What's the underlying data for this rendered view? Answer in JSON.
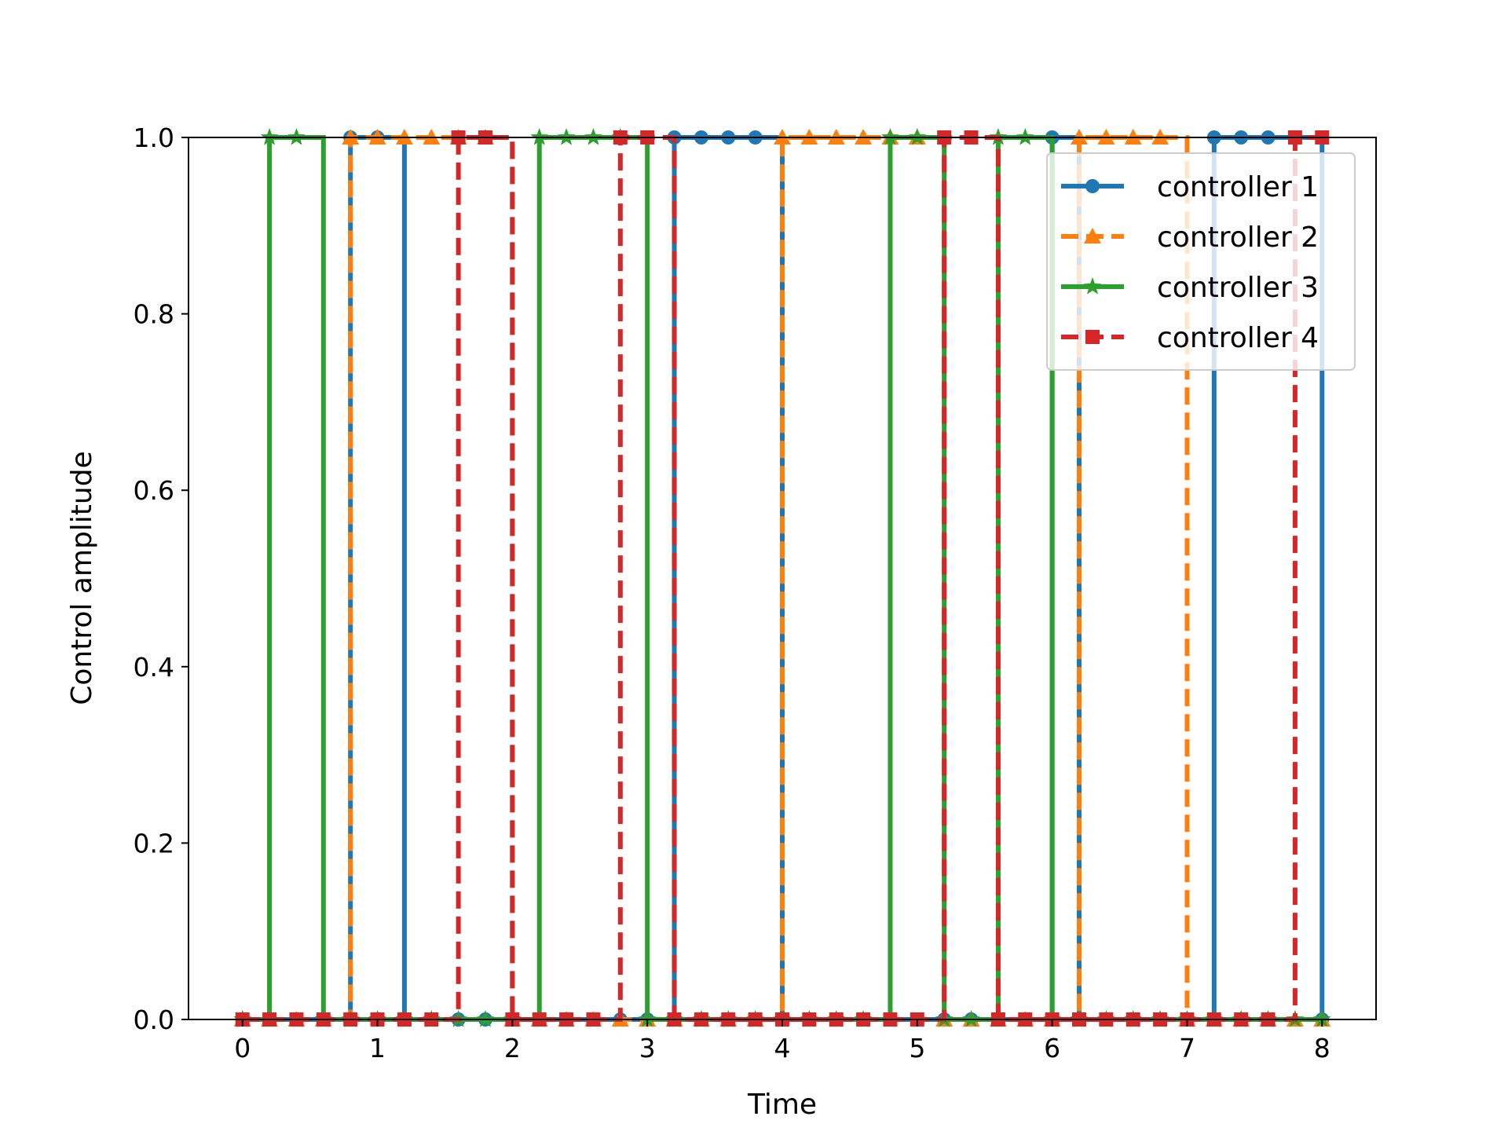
{
  "chart_data": {
    "type": "line",
    "step": "post",
    "xlabel": "Time",
    "ylabel": "Control amplitude",
    "xlim": [
      -0.4,
      8.4
    ],
    "ylim": [
      0.0,
      1.0
    ],
    "x_ticks": [
      "0",
      "1",
      "2",
      "3",
      "4",
      "5",
      "6",
      "7",
      "8"
    ],
    "y_ticks": [
      "0.0",
      "0.2",
      "0.4",
      "0.6",
      "0.8",
      "1.0"
    ],
    "grid": false,
    "legend_position": "top-right",
    "x": [
      0.0,
      0.2,
      0.4,
      0.6,
      0.8,
      1.0,
      1.2,
      1.4,
      1.6,
      1.8,
      2.0,
      2.2,
      2.4,
      2.6,
      2.8,
      3.0,
      3.2,
      3.4,
      3.6,
      3.8,
      4.0,
      4.2,
      4.4,
      4.6,
      4.8,
      5.0,
      5.2,
      5.4,
      5.6,
      5.8,
      6.0,
      6.2,
      6.4,
      6.6,
      6.8,
      7.0,
      7.2,
      7.4,
      7.6,
      7.8,
      8.0
    ],
    "series": [
      {
        "name": "controller 1",
        "color": "#1f77b4",
        "marker": "circle",
        "dash": "solid",
        "values": [
          0,
          0,
          0,
          0,
          1,
          1,
          0,
          0,
          0,
          0,
          0,
          0,
          0,
          0,
          0,
          0,
          1,
          1,
          1,
          1,
          0,
          0,
          0,
          0,
          0,
          0,
          0,
          0,
          0,
          0,
          1,
          0,
          0,
          0,
          0,
          0,
          1,
          1,
          1,
          1,
          0
        ]
      },
      {
        "name": "controller 2",
        "color": "#ff7f0e",
        "marker": "triangle",
        "dash": "dashed",
        "values": [
          0,
          0,
          0,
          0,
          1,
          1,
          1,
          1,
          1,
          1,
          0,
          0,
          0,
          0,
          0,
          0,
          0,
          0,
          0,
          0,
          1,
          1,
          1,
          1,
          1,
          1,
          0,
          0,
          0,
          0,
          0,
          1,
          1,
          1,
          1,
          0,
          0,
          0,
          0,
          0,
          0
        ]
      },
      {
        "name": "controller 3",
        "color": "#2ca02c",
        "marker": "star",
        "dash": "solid",
        "values": [
          0,
          1,
          1,
          0,
          0,
          0,
          0,
          0,
          0,
          0,
          0,
          1,
          1,
          1,
          1,
          0,
          0,
          0,
          0,
          0,
          0,
          0,
          0,
          0,
          1,
          1,
          0,
          0,
          1,
          1,
          0,
          0,
          0,
          0,
          0,
          0,
          0,
          0,
          0,
          0,
          0
        ]
      },
      {
        "name": "controller 4",
        "color": "#d62728",
        "marker": "square",
        "dash": "dashed",
        "values": [
          0,
          0,
          0,
          0,
          0,
          0,
          0,
          0,
          1,
          1,
          0,
          0,
          0,
          0,
          1,
          1,
          0,
          0,
          0,
          0,
          0,
          0,
          0,
          0,
          0,
          0,
          1,
          1,
          0,
          0,
          0,
          0,
          0,
          0,
          0,
          0,
          0,
          0,
          0,
          1,
          1
        ]
      }
    ]
  }
}
